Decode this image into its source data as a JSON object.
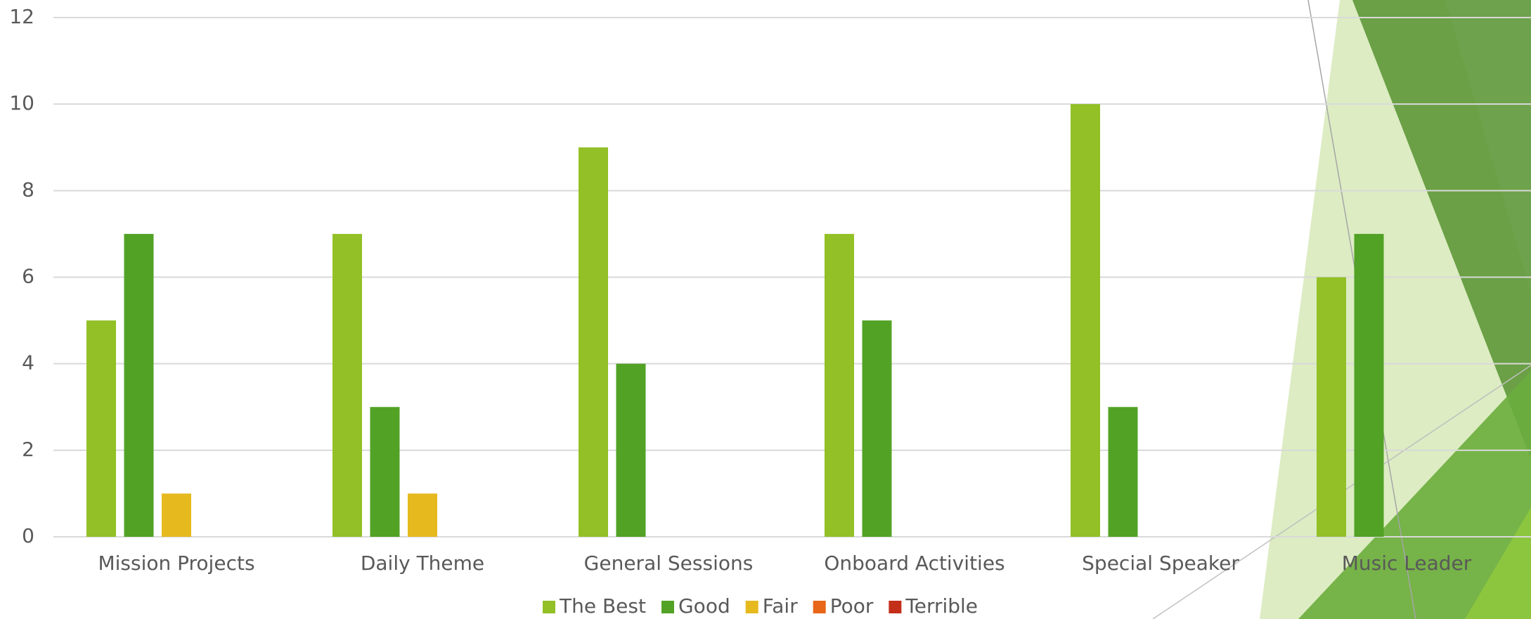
{
  "chart_data": {
    "type": "bar",
    "categories": [
      "Mission Projects",
      "Daily Theme",
      "General Sessions",
      "Onboard Activities",
      "Special Speaker",
      "Music Leader"
    ],
    "series": [
      {
        "name": "The Best",
        "color": "#92c026",
        "values": [
          5,
          7,
          9,
          7,
          10,
          6
        ]
      },
      {
        "name": "Good",
        "color": "#52a225",
        "values": [
          7,
          3,
          4,
          5,
          3,
          7
        ]
      },
      {
        "name": "Fair",
        "color": "#e6b91e",
        "values": [
          1,
          1,
          0,
          0,
          0,
          0
        ]
      },
      {
        "name": "Poor",
        "color": "#e76618",
        "values": [
          0,
          0,
          0,
          0,
          0,
          0
        ]
      },
      {
        "name": "Terrible",
        "color": "#c42f1a",
        "values": [
          0,
          0,
          0,
          0,
          0,
          0
        ]
      }
    ],
    "ylim": [
      0,
      12
    ],
    "yticks": [
      0,
      2,
      4,
      6,
      8,
      10,
      12
    ],
    "grid": true,
    "legend": "bottom"
  }
}
